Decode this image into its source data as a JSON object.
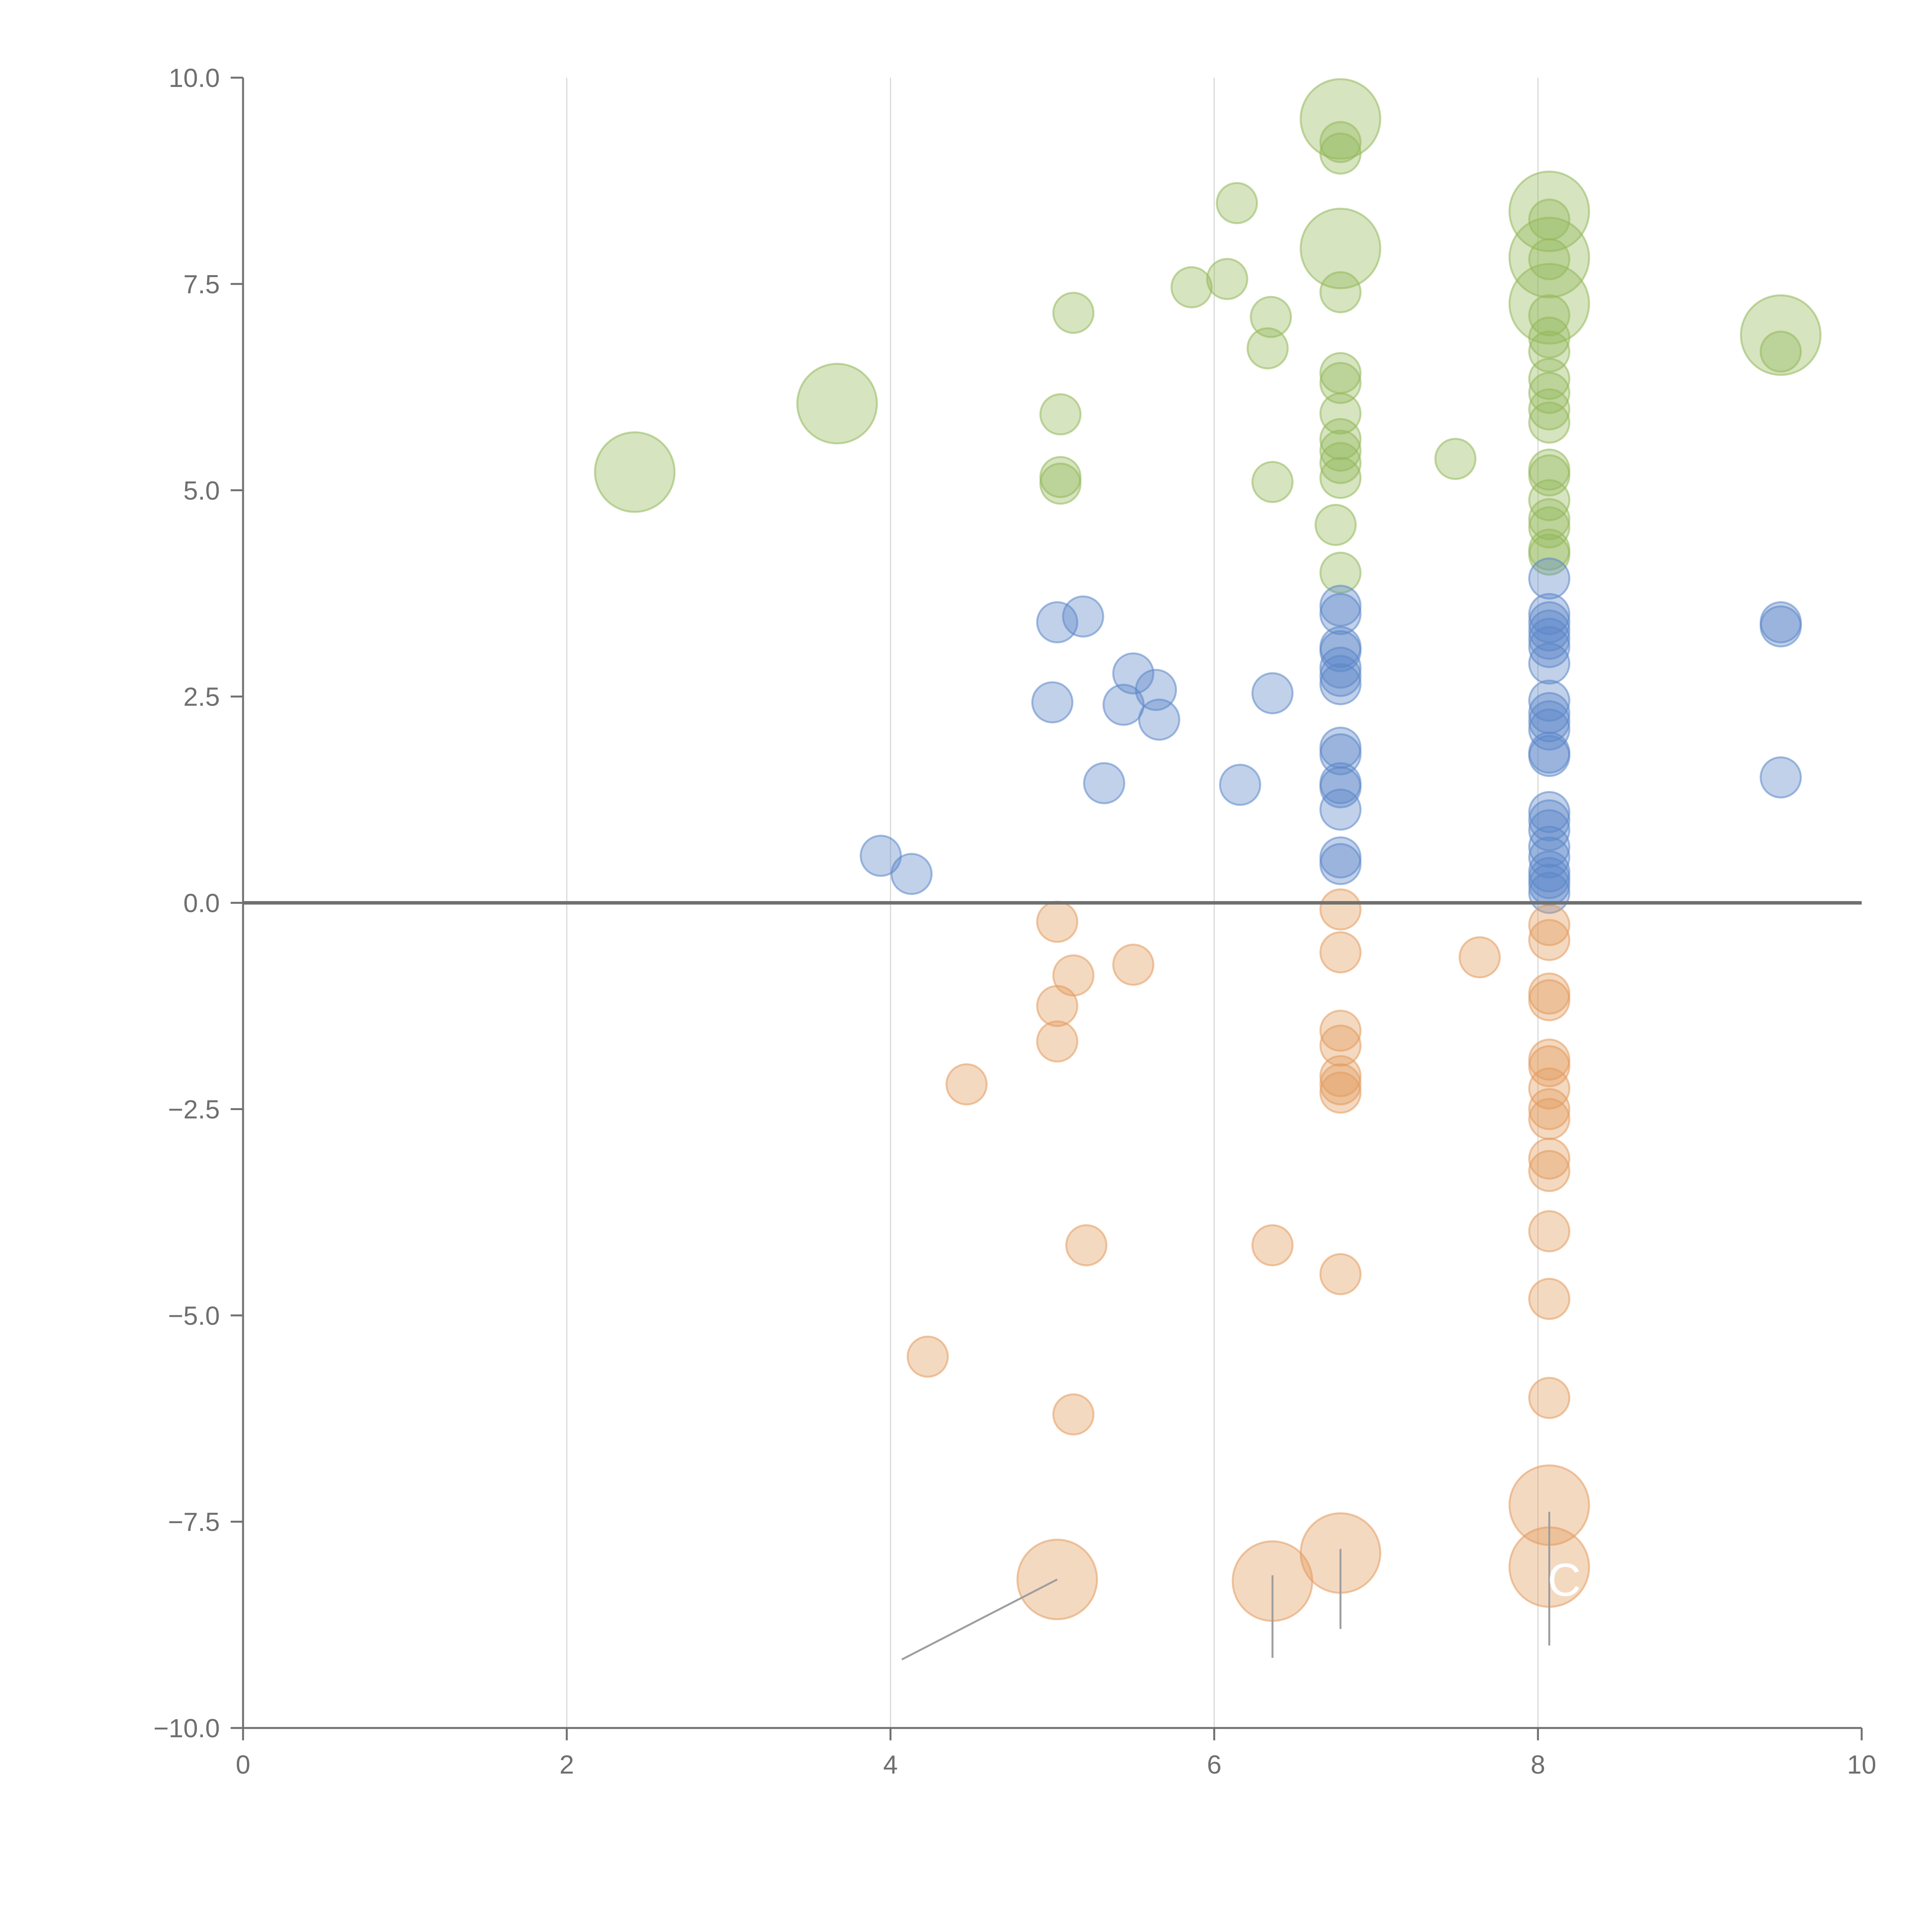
{
  "chart_data": {
    "type": "scatter",
    "subtype": "bubble",
    "title": "",
    "xlabel": "",
    "ylabel": "",
    "xlim": [
      0,
      10
    ],
    "ylim": [
      -10,
      10
    ],
    "x_ticks": [
      "0",
      "2",
      "4",
      "6",
      "8",
      "10"
    ],
    "y_ticks": [
      "10.0",
      "7.5",
      "5.0",
      "2.5",
      "0.0",
      "−2.5",
      "−5.0",
      "−7.5",
      "−10.0"
    ],
    "grid": {
      "vertical": true,
      "horizontal": false
    },
    "zero_line": 0,
    "callout_text": "C",
    "colors": {
      "green": "#93b85a",
      "blue": "#5b86c8",
      "orange": "#e39a5c",
      "axis": "#707070",
      "grid": "#d9d9d9",
      "leader": "#9e9e9e"
    },
    "series": [
      {
        "name": "green",
        "color": "#93b85a",
        "points": [
          {
            "x": 2.42,
            "y": 5.22,
            "size": 3
          },
          {
            "x": 3.67,
            "y": 6.05,
            "size": 3
          },
          {
            "x": 5.05,
            "y": 5.92,
            "size": 1
          },
          {
            "x": 5.05,
            "y": 5.16,
            "size": 1
          },
          {
            "x": 5.05,
            "y": 5.08,
            "size": 1
          },
          {
            "x": 5.13,
            "y": 7.15,
            "size": 1
          },
          {
            "x": 5.86,
            "y": 7.46,
            "size": 1
          },
          {
            "x": 6.08,
            "y": 7.56,
            "size": 1
          },
          {
            "x": 6.14,
            "y": 8.48,
            "size": 1
          },
          {
            "x": 6.33,
            "y": 6.72,
            "size": 1
          },
          {
            "x": 6.35,
            "y": 7.1,
            "size": 1
          },
          {
            "x": 6.36,
            "y": 5.1,
            "size": 1
          },
          {
            "x": 6.78,
            "y": 9.5,
            "size": 3
          },
          {
            "x": 6.78,
            "y": 7.93,
            "size": 3
          },
          {
            "x": 6.78,
            "y": 9.22,
            "size": 1
          },
          {
            "x": 6.78,
            "y": 9.08,
            "size": 1
          },
          {
            "x": 6.78,
            "y": 7.4,
            "size": 1
          },
          {
            "x": 6.78,
            "y": 6.42,
            "size": 1
          },
          {
            "x": 6.78,
            "y": 6.3,
            "size": 1
          },
          {
            "x": 6.78,
            "y": 5.93,
            "size": 1
          },
          {
            "x": 6.78,
            "y": 5.62,
            "size": 1
          },
          {
            "x": 6.78,
            "y": 5.48,
            "size": 1
          },
          {
            "x": 6.78,
            "y": 5.33,
            "size": 1
          },
          {
            "x": 6.78,
            "y": 5.15,
            "size": 1
          },
          {
            "x": 6.75,
            "y": 4.58,
            "size": 1
          },
          {
            "x": 6.78,
            "y": 4.0,
            "size": 1
          },
          {
            "x": 7.49,
            "y": 5.38,
            "size": 1
          },
          {
            "x": 8.07,
            "y": 8.38,
            "size": 3
          },
          {
            "x": 8.07,
            "y": 7.82,
            "size": 3
          },
          {
            "x": 8.07,
            "y": 7.26,
            "size": 3
          },
          {
            "x": 8.07,
            "y": 8.28,
            "size": 1
          },
          {
            "x": 8.07,
            "y": 7.8,
            "size": 1
          },
          {
            "x": 8.07,
            "y": 7.12,
            "size": 1
          },
          {
            "x": 8.07,
            "y": 6.85,
            "size": 1
          },
          {
            "x": 8.07,
            "y": 6.68,
            "size": 1
          },
          {
            "x": 8.07,
            "y": 6.35,
            "size": 1
          },
          {
            "x": 8.07,
            "y": 6.18,
            "size": 1
          },
          {
            "x": 8.07,
            "y": 5.98,
            "size": 1
          },
          {
            "x": 8.07,
            "y": 5.82,
            "size": 1
          },
          {
            "x": 8.07,
            "y": 5.25,
            "size": 1
          },
          {
            "x": 8.07,
            "y": 5.18,
            "size": 1
          },
          {
            "x": 8.07,
            "y": 4.88,
            "size": 1
          },
          {
            "x": 8.07,
            "y": 4.65,
            "size": 1
          },
          {
            "x": 8.07,
            "y": 4.55,
            "size": 1
          },
          {
            "x": 8.07,
            "y": 4.28,
            "size": 1
          },
          {
            "x": 8.07,
            "y": 4.22,
            "size": 1
          },
          {
            "x": 9.5,
            "y": 6.88,
            "size": 3
          },
          {
            "x": 9.5,
            "y": 6.68,
            "size": 1
          }
        ]
      },
      {
        "name": "blue",
        "color": "#5b86c8",
        "points": [
          {
            "x": 3.94,
            "y": 0.57,
            "size": 1
          },
          {
            "x": 4.13,
            "y": 0.35,
            "size": 1
          },
          {
            "x": 5.0,
            "y": 2.43,
            "size": 1
          },
          {
            "x": 5.03,
            "y": 3.4,
            "size": 1
          },
          {
            "x": 5.19,
            "y": 3.47,
            "size": 1
          },
          {
            "x": 5.32,
            "y": 1.45,
            "size": 1
          },
          {
            "x": 5.44,
            "y": 2.4,
            "size": 1
          },
          {
            "x": 5.5,
            "y": 2.78,
            "size": 1
          },
          {
            "x": 5.64,
            "y": 2.58,
            "size": 1
          },
          {
            "x": 5.66,
            "y": 2.22,
            "size": 1
          },
          {
            "x": 6.16,
            "y": 1.43,
            "size": 1
          },
          {
            "x": 6.36,
            "y": 2.54,
            "size": 1
          },
          {
            "x": 6.78,
            "y": 3.6,
            "size": 1
          },
          {
            "x": 6.78,
            "y": 3.5,
            "size": 1
          },
          {
            "x": 6.78,
            "y": 3.1,
            "size": 1
          },
          {
            "x": 6.78,
            "y": 3.05,
            "size": 1
          },
          {
            "x": 6.78,
            "y": 2.85,
            "size": 1
          },
          {
            "x": 6.78,
            "y": 2.75,
            "size": 1
          },
          {
            "x": 6.78,
            "y": 2.65,
            "size": 1
          },
          {
            "x": 6.78,
            "y": 1.88,
            "size": 1
          },
          {
            "x": 6.78,
            "y": 1.8,
            "size": 1
          },
          {
            "x": 6.78,
            "y": 1.45,
            "size": 1
          },
          {
            "x": 6.78,
            "y": 1.4,
            "size": 1
          },
          {
            "x": 6.78,
            "y": 1.13,
            "size": 1
          },
          {
            "x": 6.78,
            "y": 0.55,
            "size": 1
          },
          {
            "x": 6.78,
            "y": 0.47,
            "size": 1
          },
          {
            "x": 8.07,
            "y": 3.93,
            "size": 1
          },
          {
            "x": 8.07,
            "y": 3.5,
            "size": 1
          },
          {
            "x": 8.07,
            "y": 3.4,
            "size": 1
          },
          {
            "x": 8.07,
            "y": 3.3,
            "size": 1
          },
          {
            "x": 8.07,
            "y": 3.2,
            "size": 1
          },
          {
            "x": 8.07,
            "y": 3.1,
            "size": 1
          },
          {
            "x": 8.07,
            "y": 2.9,
            "size": 1
          },
          {
            "x": 8.07,
            "y": 2.45,
            "size": 1
          },
          {
            "x": 8.07,
            "y": 2.3,
            "size": 1
          },
          {
            "x": 8.07,
            "y": 2.2,
            "size": 1
          },
          {
            "x": 8.07,
            "y": 2.1,
            "size": 1
          },
          {
            "x": 8.07,
            "y": 1.82,
            "size": 1
          },
          {
            "x": 8.07,
            "y": 1.78,
            "size": 1
          },
          {
            "x": 8.07,
            "y": 1.1,
            "size": 1
          },
          {
            "x": 8.07,
            "y": 1.0,
            "size": 1
          },
          {
            "x": 8.07,
            "y": 0.88,
            "size": 1
          },
          {
            "x": 8.07,
            "y": 0.68,
            "size": 1
          },
          {
            "x": 8.07,
            "y": 0.55,
            "size": 1
          },
          {
            "x": 8.07,
            "y": 0.38,
            "size": 1
          },
          {
            "x": 8.07,
            "y": 0.3,
            "size": 1
          },
          {
            "x": 8.07,
            "y": 0.22,
            "size": 1
          },
          {
            "x": 8.07,
            "y": 0.12,
            "size": 1
          },
          {
            "x": 9.5,
            "y": 3.4,
            "size": 1
          },
          {
            "x": 9.5,
            "y": 3.35,
            "size": 1
          },
          {
            "x": 9.5,
            "y": 1.52,
            "size": 1
          }
        ]
      },
      {
        "name": "orange",
        "color": "#e39a5c",
        "points": [
          {
            "x": 4.23,
            "y": -5.5,
            "size": 1
          },
          {
            "x": 4.47,
            "y": -2.2,
            "size": 1
          },
          {
            "x": 5.03,
            "y": -0.23,
            "size": 1
          },
          {
            "x": 5.03,
            "y": -1.25,
            "size": 1
          },
          {
            "x": 5.03,
            "y": -1.68,
            "size": 1
          },
          {
            "x": 5.13,
            "y": -0.88,
            "size": 1
          },
          {
            "x": 5.13,
            "y": -6.2,
            "size": 1
          },
          {
            "x": 5.21,
            "y": -4.15,
            "size": 1
          },
          {
            "x": 5.5,
            "y": -0.75,
            "size": 1
          },
          {
            "x": 6.36,
            "y": -4.15,
            "size": 1
          },
          {
            "x": 6.78,
            "y": -0.08,
            "size": 1
          },
          {
            "x": 6.78,
            "y": -0.6,
            "size": 1
          },
          {
            "x": 6.78,
            "y": -1.55,
            "size": 1
          },
          {
            "x": 6.78,
            "y": -1.73,
            "size": 1
          },
          {
            "x": 6.78,
            "y": -2.1,
            "size": 1
          },
          {
            "x": 6.78,
            "y": -2.2,
            "size": 1
          },
          {
            "x": 6.78,
            "y": -2.3,
            "size": 1
          },
          {
            "x": 6.78,
            "y": -4.5,
            "size": 1
          },
          {
            "x": 7.64,
            "y": -0.66,
            "size": 1
          },
          {
            "x": 8.07,
            "y": -0.27,
            "size": 1
          },
          {
            "x": 8.07,
            "y": -0.45,
            "size": 1
          },
          {
            "x": 8.07,
            "y": -1.1,
            "size": 1
          },
          {
            "x": 8.07,
            "y": -1.18,
            "size": 1
          },
          {
            "x": 8.07,
            "y": -1.9,
            "size": 1
          },
          {
            "x": 8.07,
            "y": -1.98,
            "size": 1
          },
          {
            "x": 8.07,
            "y": -2.25,
            "size": 1
          },
          {
            "x": 8.07,
            "y": -2.5,
            "size": 1
          },
          {
            "x": 8.07,
            "y": -2.62,
            "size": 1
          },
          {
            "x": 8.07,
            "y": -3.1,
            "size": 1
          },
          {
            "x": 8.07,
            "y": -3.25,
            "size": 1
          },
          {
            "x": 8.07,
            "y": -3.98,
            "size": 1
          },
          {
            "x": 8.07,
            "y": -4.8,
            "size": 1
          },
          {
            "x": 8.07,
            "y": -6.0,
            "size": 1
          },
          {
            "x": 5.03,
            "y": -8.2,
            "size": 3
          },
          {
            "x": 6.36,
            "y": -8.22,
            "size": 3
          },
          {
            "x": 6.78,
            "y": -7.88,
            "size": 3
          },
          {
            "x": 8.07,
            "y": -7.3,
            "size": 3
          },
          {
            "x": 8.07,
            "y": -8.05,
            "size": 3
          }
        ]
      }
    ]
  }
}
